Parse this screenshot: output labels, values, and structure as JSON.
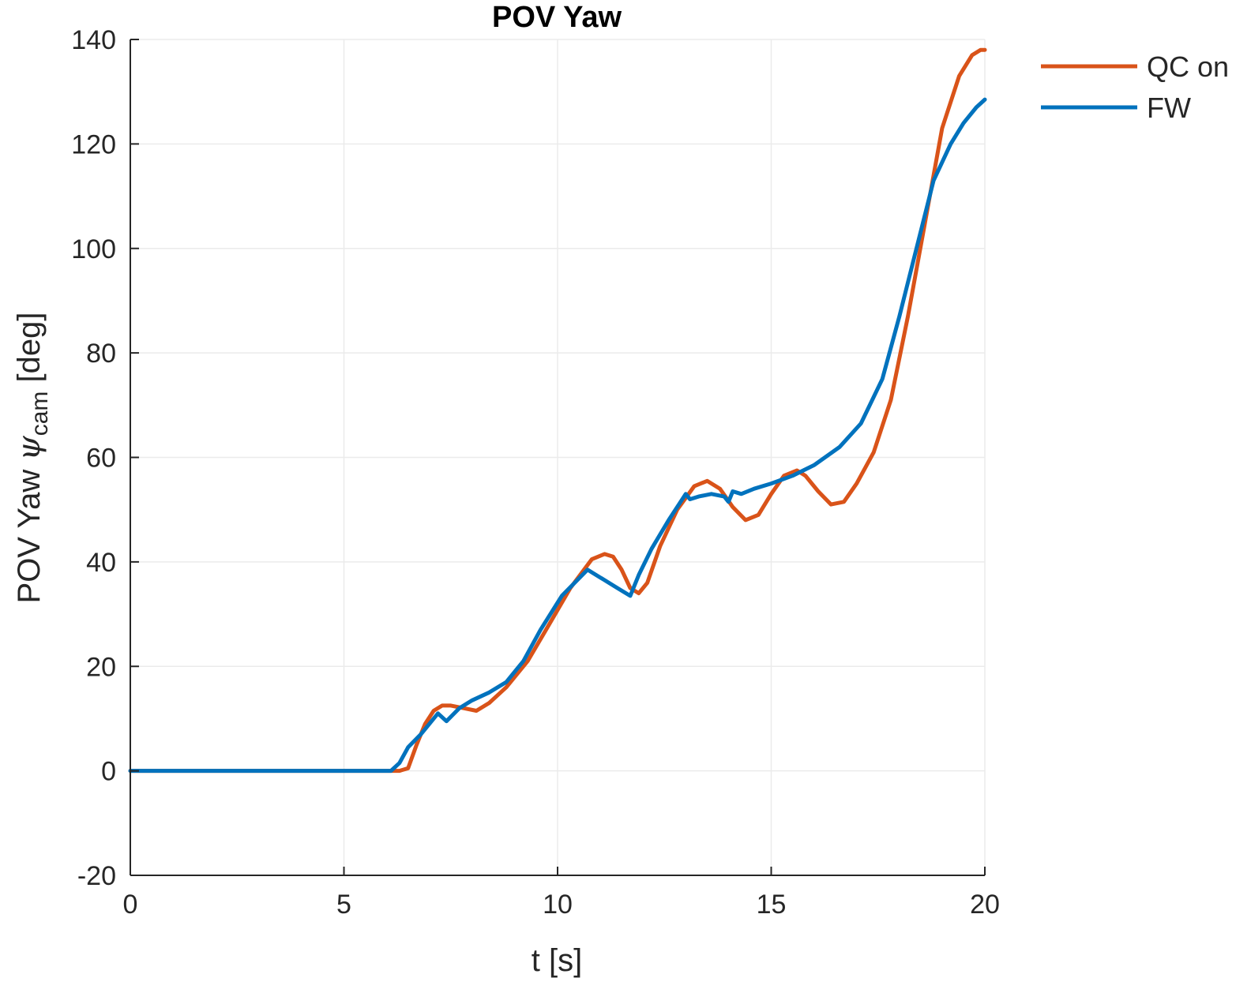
{
  "chart_data": {
    "type": "line",
    "title": "POV Yaw",
    "xlabel": "t [s]",
    "ylabel": {
      "prefix": "POV Yaw ",
      "symbol": "ψ",
      "subscript": "cam",
      "suffix": " [deg]"
    },
    "xlim": [
      0,
      20
    ],
    "ylim": [
      -20,
      140
    ],
    "xticks": [
      0,
      5,
      10,
      15,
      20
    ],
    "yticks": [
      -20,
      0,
      20,
      40,
      60,
      80,
      100,
      120,
      140
    ],
    "grid": true,
    "legend_position": "top-right",
    "series": [
      {
        "name": "QC on",
        "color": "#D95319",
        "x": [
          0,
          6.0,
          6.3,
          6.5,
          6.7,
          6.9,
          7.1,
          7.3,
          7.5,
          7.8,
          8.1,
          8.4,
          8.8,
          9.3,
          9.8,
          10.3,
          10.8,
          11.1,
          11.3,
          11.5,
          11.7,
          11.9,
          12.1,
          12.4,
          12.8,
          13.2,
          13.5,
          13.8,
          14.1,
          14.4,
          14.7,
          15.0,
          15.3,
          15.6,
          15.8,
          16.1,
          16.4,
          16.7,
          17.0,
          17.4,
          17.8,
          18.2,
          18.6,
          19.0,
          19.4,
          19.7,
          19.9,
          20.0
        ],
        "y": [
          0,
          0,
          0,
          0.5,
          5,
          9,
          11.5,
          12.5,
          12.5,
          12,
          11.5,
          13,
          16,
          21,
          28,
          35,
          40.5,
          41.5,
          41,
          38.5,
          35,
          34,
          36,
          43,
          50,
          54.5,
          55.5,
          54,
          50.5,
          48,
          49,
          53,
          56.5,
          57.5,
          56.5,
          53.5,
          51,
          51.5,
          55,
          61,
          71,
          87,
          105,
          123,
          133,
          137,
          138,
          138
        ]
      },
      {
        "name": "FW",
        "color": "#0072BD",
        "x": [
          0,
          6.1,
          6.3,
          6.5,
          6.8,
          7.0,
          7.2,
          7.4,
          7.7,
          8.0,
          8.4,
          8.8,
          9.2,
          9.6,
          10.1,
          10.7,
          11.0,
          11.4,
          11.7,
          11.9,
          12.2,
          12.6,
          13.0,
          13.1,
          13.3,
          13.6,
          13.9,
          14.0,
          14.1,
          14.3,
          14.6,
          15.0,
          15.5,
          16.0,
          16.6,
          17.1,
          17.6,
          18.0,
          18.4,
          18.8,
          19.2,
          19.5,
          19.8,
          20.0
        ],
        "y": [
          0,
          0,
          1.5,
          4.5,
          7,
          9,
          11,
          9.5,
          12,
          13.5,
          15,
          17,
          21,
          27,
          33.5,
          38.5,
          37,
          35,
          33.5,
          37.5,
          42.5,
          48,
          53,
          52,
          52.5,
          53,
          52.5,
          51.5,
          53.5,
          53,
          54,
          55,
          56.5,
          58.5,
          62,
          66.5,
          75,
          87,
          100,
          113,
          120,
          124,
          127,
          128.5
        ]
      }
    ]
  }
}
